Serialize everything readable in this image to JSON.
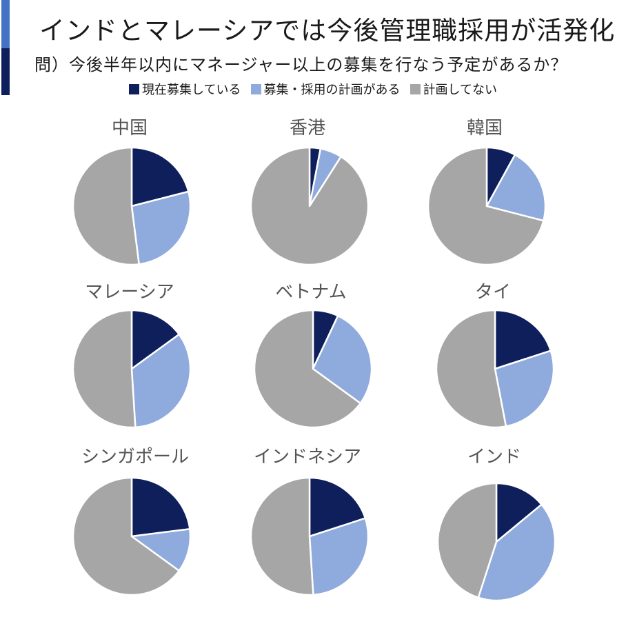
{
  "title": "インドとマレーシアでは今後管理職採用が活発化",
  "subtitle": "問）今後半年以内にマネージャー以上の募集を行なう予定があるか？",
  "colors": {
    "accent_top": "#4472c4",
    "accent_bottom": "#0e1f5b",
    "series": [
      "#0e1f5b",
      "#8faadc",
      "#a6a6a6"
    ]
  },
  "legend": [
    {
      "label": "現在募集している",
      "color": "#0e1f5b"
    },
    {
      "label": "募集・採用の計画がある",
      "color": "#8faadc"
    },
    {
      "label": "計画してない",
      "color": "#a6a6a6"
    }
  ],
  "chart_data": [
    {
      "type": "pie",
      "title": "中国",
      "labels": [
        "現在募集している",
        "募集・採用の計画がある",
        "計画してない"
      ],
      "values": [
        21,
        27,
        52
      ]
    },
    {
      "type": "pie",
      "title": "香港",
      "labels": [
        "現在募集している",
        "募集・採用の計画がある",
        "計画してない"
      ],
      "values": [
        3,
        6,
        91
      ]
    },
    {
      "type": "pie",
      "title": "韓国",
      "labels": [
        "現在募集している",
        "募集・採用の計画がある",
        "計画してない"
      ],
      "values": [
        8,
        21,
        71
      ]
    },
    {
      "type": "pie",
      "title": "マレーシア",
      "labels": [
        "現在募集している",
        "募集・採用の計画がある",
        "計画してない"
      ],
      "values": [
        15,
        34,
        51
      ]
    },
    {
      "type": "pie",
      "title": "ベトナム",
      "labels": [
        "現在募集している",
        "募集・採用の計画がある",
        "計画してない"
      ],
      "values": [
        7,
        28,
        65
      ]
    },
    {
      "type": "pie",
      "title": "タイ",
      "labels": [
        "現在募集している",
        "募集・採用の計画がある",
        "計画してない"
      ],
      "values": [
        20,
        27,
        53
      ]
    },
    {
      "type": "pie",
      "title": "シンガポール",
      "labels": [
        "現在募集している",
        "募集・採用の計画がある",
        "計画してない"
      ],
      "values": [
        23,
        12,
        65
      ]
    },
    {
      "type": "pie",
      "title": "インドネシア",
      "labels": [
        "現在募集している",
        "募集・採用の計画がある",
        "計画してない"
      ],
      "values": [
        20,
        29,
        51
      ]
    },
    {
      "type": "pie",
      "title": "インド",
      "labels": [
        "現在募集している",
        "募集・採用の計画がある",
        "計画してない"
      ],
      "values": [
        14,
        41,
        45
      ]
    }
  ]
}
